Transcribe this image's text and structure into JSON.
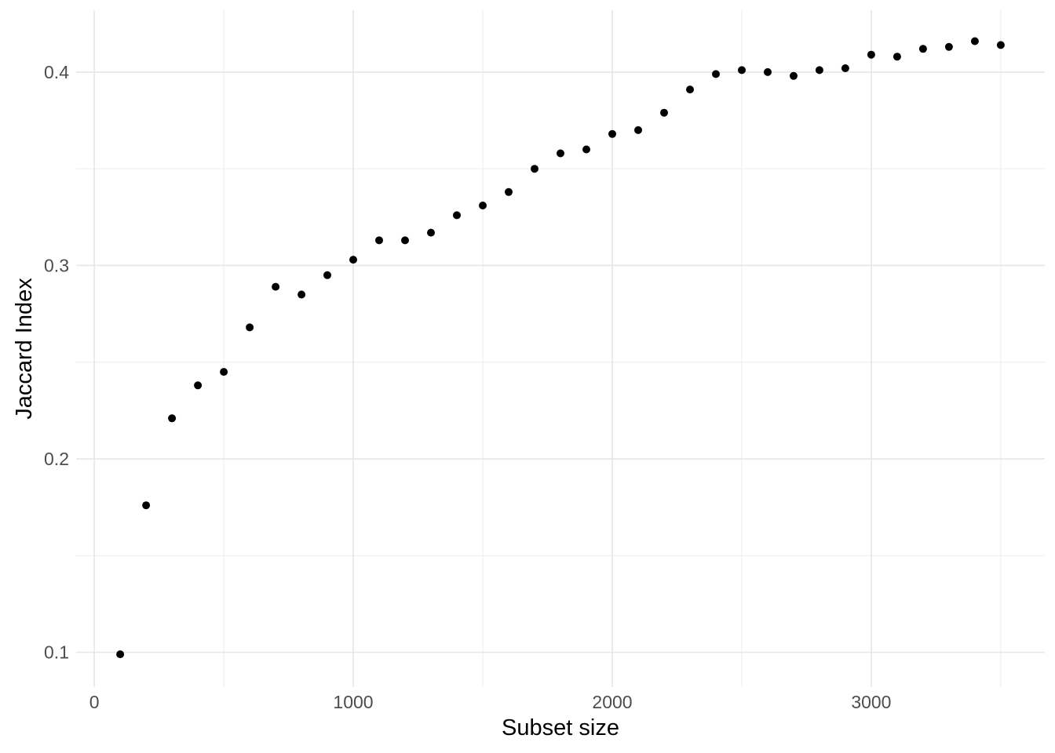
{
  "chart_data": {
    "type": "scatter",
    "title": "",
    "xlabel": "Subset size",
    "ylabel": "Jaccard Index",
    "x": [
      100,
      200,
      300,
      400,
      500,
      600,
      700,
      800,
      900,
      1000,
      1100,
      1200,
      1300,
      1400,
      1500,
      1600,
      1700,
      1800,
      1900,
      2000,
      2100,
      2200,
      2300,
      2400,
      2500,
      2600,
      2700,
      2800,
      2900,
      3000,
      3100,
      3200,
      3300,
      3400,
      3500
    ],
    "y": [
      0.099,
      0.176,
      0.221,
      0.238,
      0.245,
      0.268,
      0.289,
      0.285,
      0.295,
      0.303,
      0.313,
      0.313,
      0.317,
      0.326,
      0.331,
      0.338,
      0.35,
      0.358,
      0.36,
      0.368,
      0.37,
      0.379,
      0.391,
      0.399,
      0.401,
      0.4,
      0.398,
      0.401,
      0.402,
      0.409,
      0.408,
      0.412,
      0.413,
      0.416,
      0.414
    ],
    "xlim": [
      -70,
      3670
    ],
    "ylim": [
      0.082,
      0.432
    ],
    "x_major_ticks": [
      0,
      1000,
      2000,
      3000
    ],
    "x_tick_labels": [
      "0",
      "1000",
      "2000",
      "3000"
    ],
    "x_minor_ticks": [
      500,
      1500,
      2500,
      3500
    ],
    "y_major_ticks": [
      0.1,
      0.2,
      0.3,
      0.4
    ],
    "y_tick_labels": [
      "0.1",
      "0.2",
      "0.3",
      "0.4"
    ],
    "y_minor_ticks": [
      0.15,
      0.25,
      0.35
    ],
    "grid": true,
    "legend": "none",
    "point_color": "#000000",
    "point_radius_px": 5,
    "grid_major_color": "#e6e6e6",
    "grid_minor_color": "#efefef",
    "tick_label_color": "#4d4d4d",
    "axis_title_color": "#000000",
    "background_color": "#ffffff"
  }
}
